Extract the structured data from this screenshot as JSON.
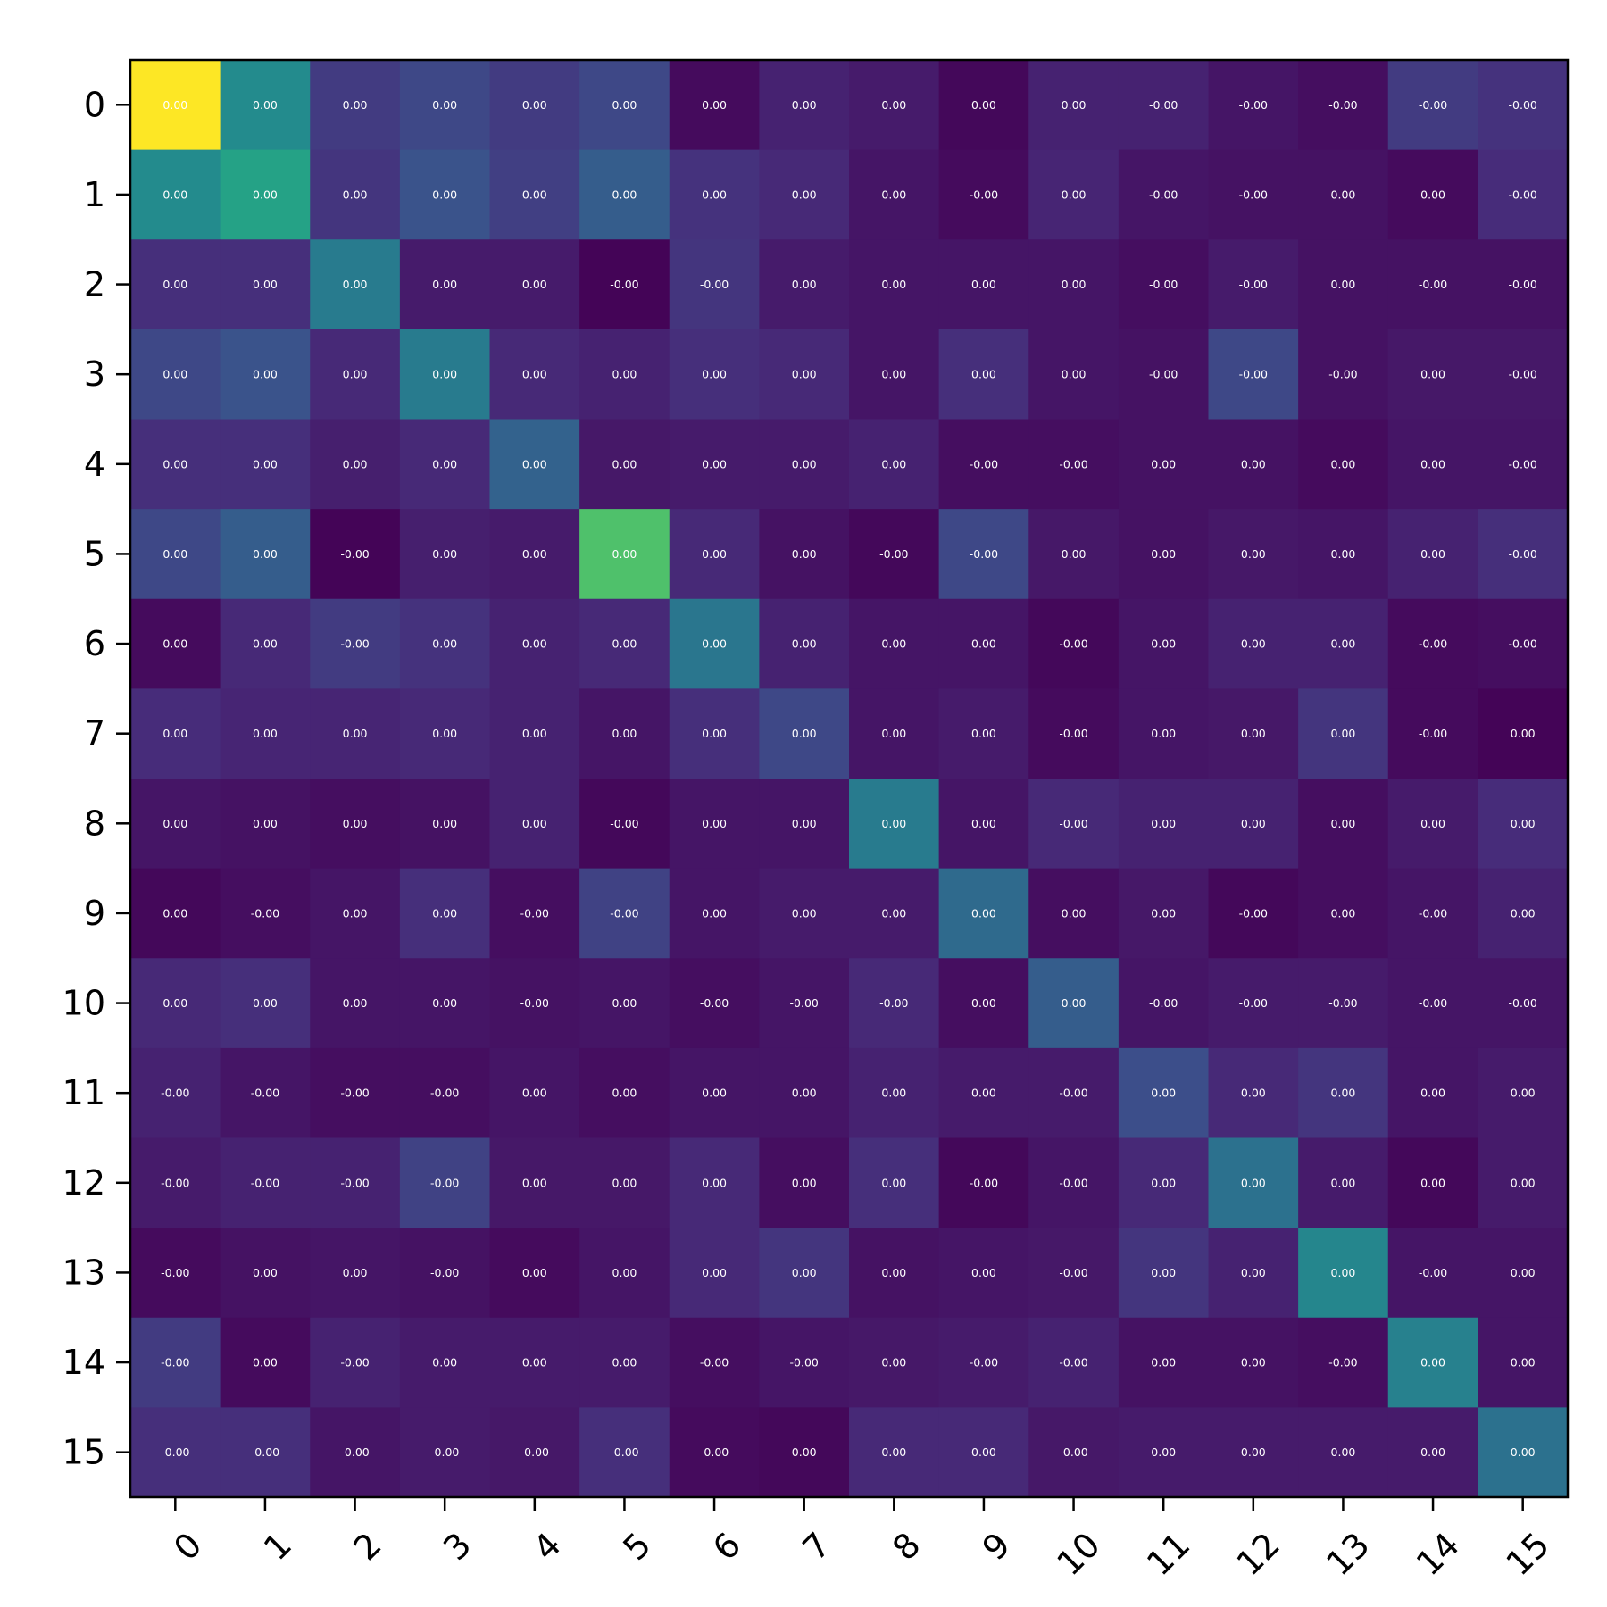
{
  "chart_data": {
    "type": "heatmap",
    "title": "",
    "xlabel": "",
    "ylabel": "",
    "colormap": "viridis",
    "x_tick_labels": [
      "0",
      "1",
      "2",
      "3",
      "4",
      "5",
      "6",
      "7",
      "8",
      "9",
      "10",
      "11",
      "12",
      "13",
      "14",
      "15"
    ],
    "y_tick_labels": [
      "0",
      "1",
      "2",
      "3",
      "4",
      "5",
      "6",
      "7",
      "8",
      "9",
      "10",
      "11",
      "12",
      "13",
      "14",
      "15"
    ],
    "value_labels": [
      [
        "0.00",
        "0.00",
        "0.00",
        "0.00",
        "0.00",
        "0.00",
        "0.00",
        "0.00",
        "0.00",
        "0.00",
        "0.00",
        "-0.00",
        "-0.00",
        "-0.00",
        "-0.00",
        "-0.00"
      ],
      [
        "0.00",
        "0.00",
        "0.00",
        "0.00",
        "0.00",
        "0.00",
        "0.00",
        "0.00",
        "0.00",
        "-0.00",
        "0.00",
        "-0.00",
        "-0.00",
        "0.00",
        "0.00",
        "-0.00"
      ],
      [
        "0.00",
        "0.00",
        "0.00",
        "0.00",
        "0.00",
        "-0.00",
        "-0.00",
        "0.00",
        "0.00",
        "0.00",
        "0.00",
        "-0.00",
        "-0.00",
        "0.00",
        "-0.00",
        "-0.00"
      ],
      [
        "0.00",
        "0.00",
        "0.00",
        "0.00",
        "0.00",
        "0.00",
        "0.00",
        "0.00",
        "0.00",
        "0.00",
        "0.00",
        "-0.00",
        "-0.00",
        "-0.00",
        "0.00",
        "-0.00"
      ],
      [
        "0.00",
        "0.00",
        "0.00",
        "0.00",
        "0.00",
        "0.00",
        "0.00",
        "0.00",
        "0.00",
        "-0.00",
        "-0.00",
        "0.00",
        "0.00",
        "0.00",
        "0.00",
        "-0.00"
      ],
      [
        "0.00",
        "0.00",
        "-0.00",
        "0.00",
        "0.00",
        "0.00",
        "0.00",
        "0.00",
        "-0.00",
        "-0.00",
        "0.00",
        "0.00",
        "0.00",
        "0.00",
        "0.00",
        "-0.00"
      ],
      [
        "0.00",
        "0.00",
        "-0.00",
        "0.00",
        "0.00",
        "0.00",
        "0.00",
        "0.00",
        "0.00",
        "0.00",
        "-0.00",
        "0.00",
        "0.00",
        "0.00",
        "-0.00",
        "-0.00"
      ],
      [
        "0.00",
        "0.00",
        "0.00",
        "0.00",
        "0.00",
        "0.00",
        "0.00",
        "0.00",
        "0.00",
        "0.00",
        "-0.00",
        "0.00",
        "0.00",
        "0.00",
        "-0.00",
        "0.00"
      ],
      [
        "0.00",
        "0.00",
        "0.00",
        "0.00",
        "0.00",
        "-0.00",
        "0.00",
        "0.00",
        "0.00",
        "0.00",
        "-0.00",
        "0.00",
        "0.00",
        "0.00",
        "0.00",
        "0.00"
      ],
      [
        "0.00",
        "-0.00",
        "0.00",
        "0.00",
        "-0.00",
        "-0.00",
        "0.00",
        "0.00",
        "0.00",
        "0.00",
        "0.00",
        "0.00",
        "-0.00",
        "0.00",
        "-0.00",
        "0.00"
      ],
      [
        "0.00",
        "0.00",
        "0.00",
        "0.00",
        "-0.00",
        "0.00",
        "-0.00",
        "-0.00",
        "-0.00",
        "0.00",
        "0.00",
        "-0.00",
        "-0.00",
        "-0.00",
        "-0.00",
        "-0.00"
      ],
      [
        "-0.00",
        "-0.00",
        "-0.00",
        "-0.00",
        "0.00",
        "0.00",
        "0.00",
        "0.00",
        "0.00",
        "0.00",
        "-0.00",
        "0.00",
        "0.00",
        "0.00",
        "0.00",
        "0.00"
      ],
      [
        "-0.00",
        "-0.00",
        "-0.00",
        "-0.00",
        "0.00",
        "0.00",
        "0.00",
        "0.00",
        "0.00",
        "-0.00",
        "-0.00",
        "0.00",
        "0.00",
        "0.00",
        "0.00",
        "0.00"
      ],
      [
        "-0.00",
        "0.00",
        "0.00",
        "-0.00",
        "0.00",
        "0.00",
        "0.00",
        "0.00",
        "0.00",
        "0.00",
        "-0.00",
        "0.00",
        "0.00",
        "0.00",
        "-0.00",
        "0.00"
      ],
      [
        "-0.00",
        "0.00",
        "-0.00",
        "0.00",
        "0.00",
        "0.00",
        "-0.00",
        "-0.00",
        "0.00",
        "-0.00",
        "-0.00",
        "0.00",
        "0.00",
        "-0.00",
        "0.00",
        "0.00"
      ],
      [
        "-0.00",
        "-0.00",
        "-0.00",
        "-0.00",
        "-0.00",
        "-0.00",
        "-0.00",
        "0.00",
        "0.00",
        "0.00",
        "-0.00",
        "0.00",
        "0.00",
        "0.00",
        "0.00",
        "0.00"
      ]
    ],
    "intensity": [
      [
        1.0,
        0.48,
        0.18,
        0.22,
        0.18,
        0.22,
        0.03,
        0.1,
        0.08,
        0.02,
        0.1,
        0.1,
        0.06,
        0.04,
        0.18,
        0.15
      ],
      [
        0.48,
        0.58,
        0.16,
        0.26,
        0.19,
        0.3,
        0.15,
        0.12,
        0.06,
        0.03,
        0.11,
        0.06,
        0.05,
        0.05,
        0.03,
        0.13
      ],
      [
        0.14,
        0.14,
        0.42,
        0.08,
        0.08,
        0.01,
        0.16,
        0.08,
        0.06,
        0.06,
        0.06,
        0.04,
        0.08,
        0.05,
        0.05,
        0.05
      ],
      [
        0.22,
        0.26,
        0.12,
        0.42,
        0.12,
        0.1,
        0.14,
        0.12,
        0.06,
        0.14,
        0.06,
        0.05,
        0.22,
        0.05,
        0.07,
        0.07
      ],
      [
        0.14,
        0.14,
        0.09,
        0.12,
        0.32,
        0.07,
        0.08,
        0.08,
        0.1,
        0.04,
        0.04,
        0.05,
        0.05,
        0.03,
        0.06,
        0.06
      ],
      [
        0.22,
        0.3,
        0.01,
        0.09,
        0.08,
        0.72,
        0.12,
        0.05,
        0.02,
        0.22,
        0.07,
        0.05,
        0.07,
        0.06,
        0.1,
        0.14
      ],
      [
        0.03,
        0.12,
        0.18,
        0.15,
        0.1,
        0.12,
        0.4,
        0.1,
        0.06,
        0.06,
        0.02,
        0.06,
        0.1,
        0.1,
        0.03,
        0.04
      ],
      [
        0.13,
        0.11,
        0.11,
        0.12,
        0.1,
        0.06,
        0.14,
        0.22,
        0.06,
        0.08,
        0.03,
        0.06,
        0.07,
        0.16,
        0.03,
        0.01
      ],
      [
        0.06,
        0.05,
        0.04,
        0.05,
        0.1,
        0.02,
        0.06,
        0.06,
        0.42,
        0.06,
        0.12,
        0.1,
        0.1,
        0.04,
        0.08,
        0.13
      ],
      [
        0.02,
        0.04,
        0.06,
        0.14,
        0.04,
        0.2,
        0.06,
        0.08,
        0.08,
        0.35,
        0.04,
        0.07,
        0.02,
        0.04,
        0.06,
        0.1
      ],
      [
        0.12,
        0.14,
        0.06,
        0.06,
        0.05,
        0.06,
        0.04,
        0.06,
        0.12,
        0.04,
        0.3,
        0.06,
        0.08,
        0.08,
        0.06,
        0.06
      ],
      [
        0.1,
        0.06,
        0.04,
        0.04,
        0.06,
        0.04,
        0.06,
        0.06,
        0.1,
        0.08,
        0.08,
        0.24,
        0.12,
        0.16,
        0.06,
        0.08
      ],
      [
        0.08,
        0.1,
        0.1,
        0.2,
        0.07,
        0.07,
        0.12,
        0.04,
        0.14,
        0.02,
        0.06,
        0.12,
        0.38,
        0.08,
        0.02,
        0.08
      ],
      [
        0.03,
        0.05,
        0.06,
        0.05,
        0.03,
        0.06,
        0.12,
        0.16,
        0.05,
        0.06,
        0.07,
        0.16,
        0.1,
        0.46,
        0.06,
        0.06
      ],
      [
        0.18,
        0.03,
        0.1,
        0.08,
        0.08,
        0.08,
        0.04,
        0.06,
        0.07,
        0.08,
        0.1,
        0.05,
        0.05,
        0.04,
        0.44,
        0.06
      ],
      [
        0.14,
        0.14,
        0.06,
        0.08,
        0.07,
        0.14,
        0.03,
        0.02,
        0.12,
        0.12,
        0.07,
        0.08,
        0.08,
        0.08,
        0.08,
        0.38
      ]
    ]
  }
}
